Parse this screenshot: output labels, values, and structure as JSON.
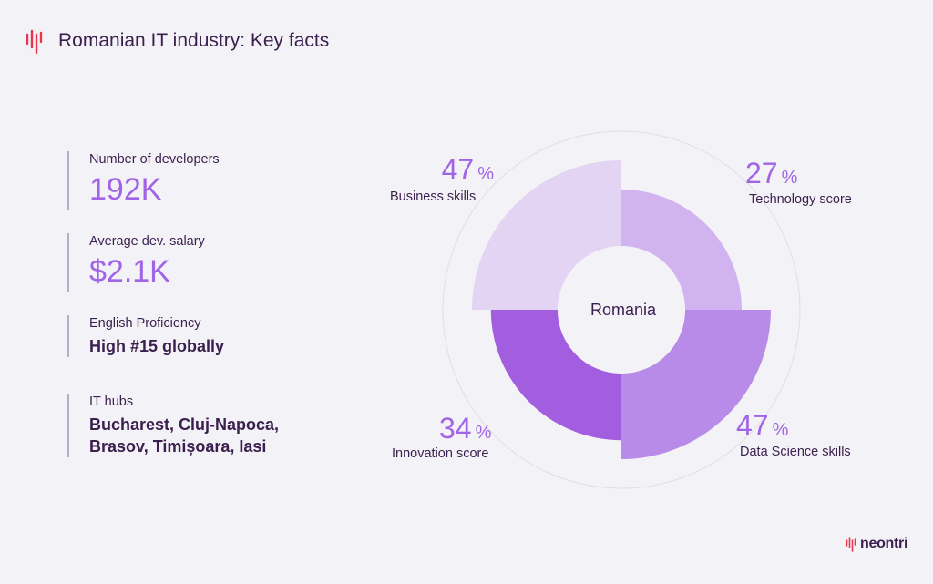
{
  "header": {
    "title": "Romanian IT industry: Key facts",
    "logo_icon": "neontri-waveform-icon"
  },
  "facts": [
    {
      "label": "Number of developers",
      "value": "192K"
    },
    {
      "label": "Average dev. salary",
      "value": "$2.1K"
    },
    {
      "label": "English Proficiency",
      "value": "High #15 globally"
    },
    {
      "label": "IT hubs",
      "value_line1": "Bucharest, Cluj-Napoca,",
      "value_line2": "Brasov, Timișoara, Iasi"
    }
  ],
  "chart_data": {
    "type": "pie",
    "center_label": "Romania",
    "categories": [
      "Technology score",
      "Data Science skills",
      "Innovation score",
      "Business skills"
    ],
    "values": [
      27,
      47,
      34,
      47
    ],
    "unit": "%",
    "colors": [
      "#d1b3f0",
      "#b98be8",
      "#a35ee0",
      "#e3d4f3"
    ]
  },
  "stats": [
    {
      "value": "47",
      "unit": "%",
      "label": "Business skills"
    },
    {
      "value": "27",
      "unit": "%",
      "label": "Technology score"
    },
    {
      "value": "34",
      "unit": "%",
      "label": "Innovation score"
    },
    {
      "value": "47",
      "unit": "%",
      "label": "Data Science skills"
    }
  ],
  "brand": {
    "name": "neontri"
  },
  "colors": {
    "accent": "#a164e6",
    "text": "#3b1f4f",
    "logo_red": "#e8364f"
  }
}
